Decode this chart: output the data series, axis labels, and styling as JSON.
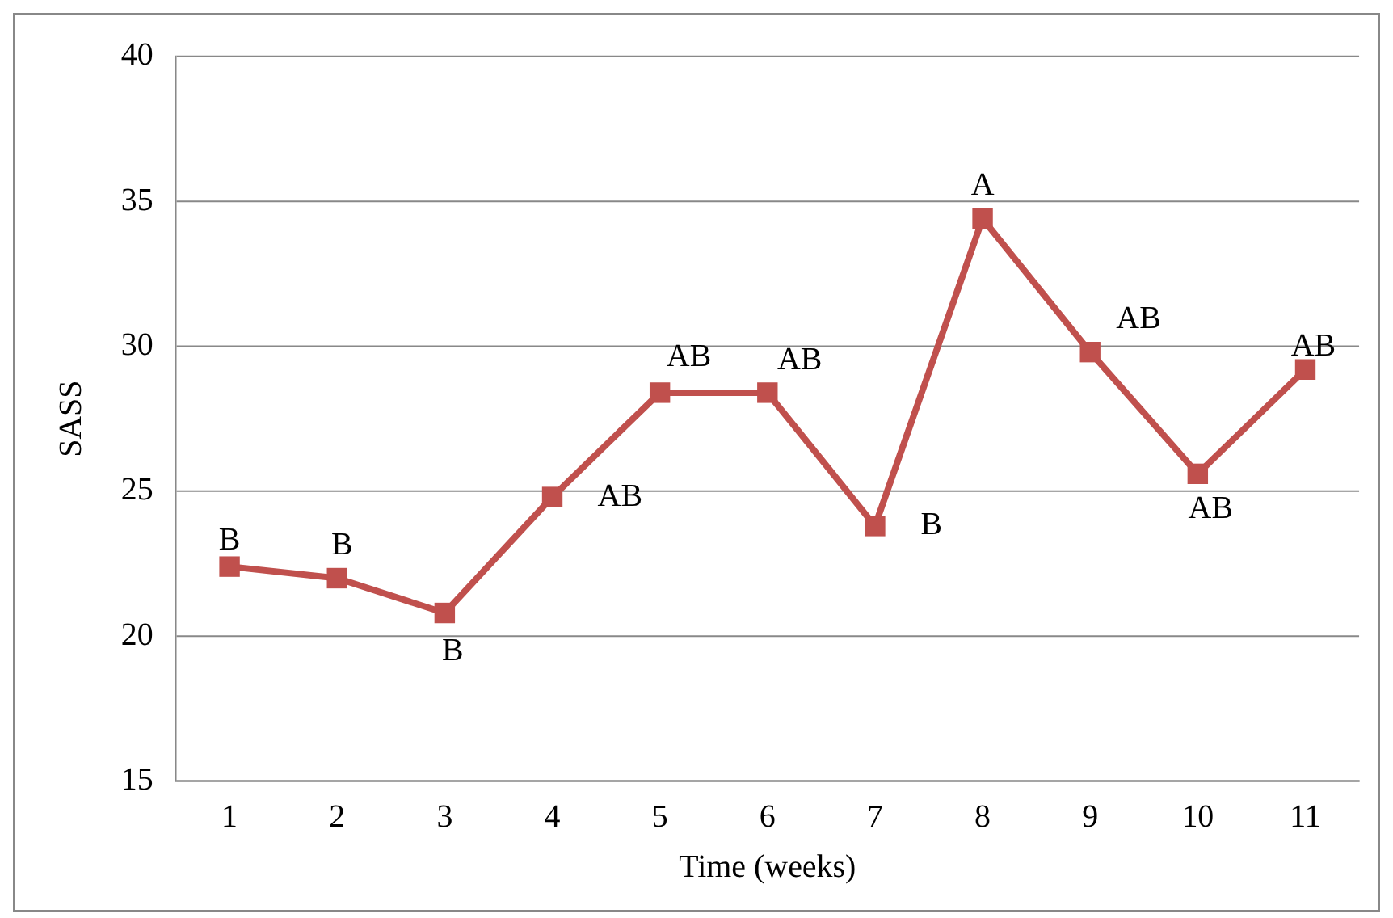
{
  "chart_data": {
    "type": "line",
    "xlabel": "Time (weeks)",
    "ylabel": "SASS",
    "categories": [
      "1",
      "2",
      "3",
      "4",
      "5",
      "6",
      "7",
      "8",
      "9",
      "10",
      "11"
    ],
    "series": [
      {
        "color": "#c0504d",
        "values": [
          22.4,
          22.0,
          20.8,
          24.8,
          28.4,
          28.4,
          23.8,
          34.4,
          29.8,
          25.6,
          29.2
        ]
      }
    ],
    "ylim": [
      15,
      40
    ],
    "yticks": [
      15,
      20,
      25,
      30,
      35,
      40
    ],
    "grid": "y",
    "legend": false,
    "marker": "square",
    "line_style": "solid",
    "annotations": [
      {
        "text": "B",
        "x": "1",
        "y": 22.4
      },
      {
        "text": "B",
        "x": "2",
        "y": 22.0
      },
      {
        "text": "B",
        "x": "3",
        "y": 20.8
      },
      {
        "text": "AB",
        "x": "4",
        "y": 24.8
      },
      {
        "text": "AB",
        "x": "5",
        "y": 28.4
      },
      {
        "text": "AB",
        "x": "6",
        "y": 28.4
      },
      {
        "text": "B",
        "x": "7",
        "y": 23.8
      },
      {
        "text": "A",
        "x": "8",
        "y": 34.4
      },
      {
        "text": "AB",
        "x": "9",
        "y": 29.8
      },
      {
        "text": "AB",
        "x": "10",
        "y": 25.6
      },
      {
        "text": "AB",
        "x": "11",
        "y": 29.2
      }
    ]
  }
}
